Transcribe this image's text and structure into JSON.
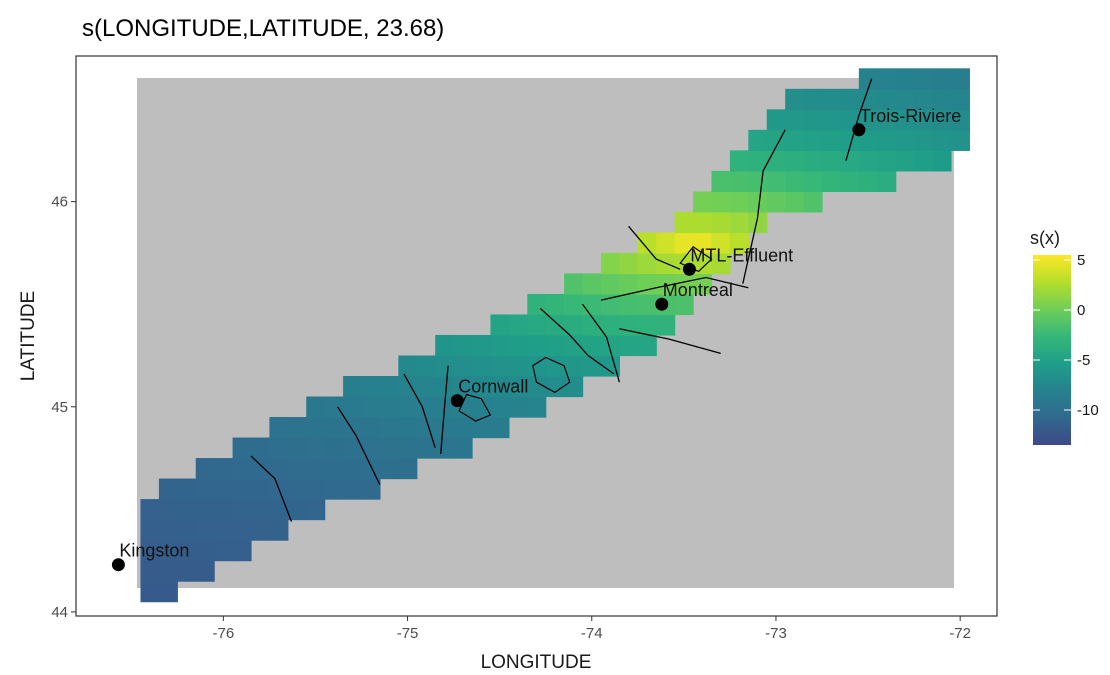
{
  "chart_data": {
    "type": "heatmap",
    "title": "s(LONGITUDE,LATITUDE, 23.68)",
    "xlabel": "LONGITUDE",
    "ylabel": "LATITUDE",
    "xlim": [
      -76.8,
      -71.8
    ],
    "ylim": [
      43.98,
      46.71
    ],
    "x_ticks": [
      -76,
      -75,
      -74,
      -73,
      -72
    ],
    "y_ticks": [
      44,
      45,
      46
    ],
    "background_color": "#bebebe",
    "grid": false,
    "legend": {
      "title": "s(x)",
      "placement": "right",
      "ticks": [
        5,
        0,
        -5,
        -10
      ],
      "range": [
        -13.5,
        5.5
      ],
      "colors": [
        "#3e4989",
        "#31688e",
        "#26828e",
        "#1f9e89",
        "#35b779",
        "#6ece58",
        "#b5de2b",
        "#fde725"
      ]
    },
    "field": {
      "band_center": [
        [
          -76.5,
          44.25
        ],
        [
          -75.5,
          44.75
        ],
        [
          -74.5,
          45.15
        ],
        [
          -73.6,
          45.6
        ],
        [
          -73.0,
          46.2
        ],
        [
          -72.0,
          46.5
        ]
      ],
      "band_halfwidth_lat": 0.28,
      "peak": {
        "lon": -73.45,
        "lat": 45.8,
        "value": 5
      },
      "min_value": -13
    },
    "locations": [
      {
        "name": "Kingston",
        "lon": -76.57,
        "lat": 44.23
      },
      {
        "name": "Cornwall",
        "lon": -74.73,
        "lat": 45.03
      },
      {
        "name": "Montreal",
        "lon": -73.62,
        "lat": 45.5
      },
      {
        "name": "MTL-Effluent",
        "lon": -73.47,
        "lat": 45.67
      },
      {
        "name": "Trois-Riviere",
        "lon": -72.55,
        "lat": 46.35
      }
    ],
    "contours": [
      [
        [
          -75.85,
          44.76
        ],
        [
          -75.72,
          44.65
        ],
        [
          -75.63,
          44.44
        ]
      ],
      [
        [
          -75.38,
          45.0
        ],
        [
          -75.28,
          44.86
        ],
        [
          -75.15,
          44.62
        ]
      ],
      [
        [
          -75.02,
          45.16
        ],
        [
          -74.92,
          45.0
        ],
        [
          -74.85,
          44.8
        ]
      ],
      [
        [
          -74.78,
          45.2
        ],
        [
          -74.8,
          44.99
        ],
        [
          -74.82,
          44.77
        ]
      ],
      [
        [
          -74.05,
          45.5
        ],
        [
          -73.92,
          45.34
        ],
        [
          -73.85,
          45.12
        ]
      ],
      [
        [
          -74.28,
          45.48
        ],
        [
          -74.12,
          45.35
        ],
        [
          -74.02,
          45.25
        ],
        [
          -73.88,
          45.16
        ]
      ],
      [
        [
          -73.85,
          45.38
        ],
        [
          -73.58,
          45.33
        ],
        [
          -73.3,
          45.26
        ]
      ],
      [
        [
          -73.95,
          45.52
        ],
        [
          -73.65,
          45.58
        ],
        [
          -73.38,
          45.63
        ],
        [
          -73.15,
          45.58
        ]
      ],
      [
        [
          -73.8,
          45.88
        ],
        [
          -73.65,
          45.72
        ],
        [
          -73.52,
          45.67
        ]
      ],
      [
        [
          -72.95,
          46.35
        ],
        [
          -73.07,
          46.15
        ],
        [
          -73.1,
          45.92
        ],
        [
          -73.18,
          45.6
        ]
      ],
      [
        [
          -72.48,
          46.6
        ],
        [
          -72.55,
          46.42
        ],
        [
          -72.62,
          46.2
        ]
      ]
    ],
    "closed_contours": [
      [
        [
          -74.25,
          45.24
        ],
        [
          -74.15,
          45.2
        ],
        [
          -74.12,
          45.12
        ],
        [
          -74.2,
          45.07
        ],
        [
          -74.3,
          45.12
        ],
        [
          -74.32,
          45.2
        ]
      ],
      [
        [
          -74.6,
          45.04
        ],
        [
          -74.55,
          44.96
        ],
        [
          -74.63,
          44.93
        ],
        [
          -74.72,
          44.98
        ],
        [
          -74.68,
          45.06
        ]
      ],
      [
        [
          -73.45,
          45.78
        ],
        [
          -73.35,
          45.72
        ],
        [
          -73.42,
          45.66
        ],
        [
          -73.52,
          45.7
        ]
      ]
    ]
  }
}
